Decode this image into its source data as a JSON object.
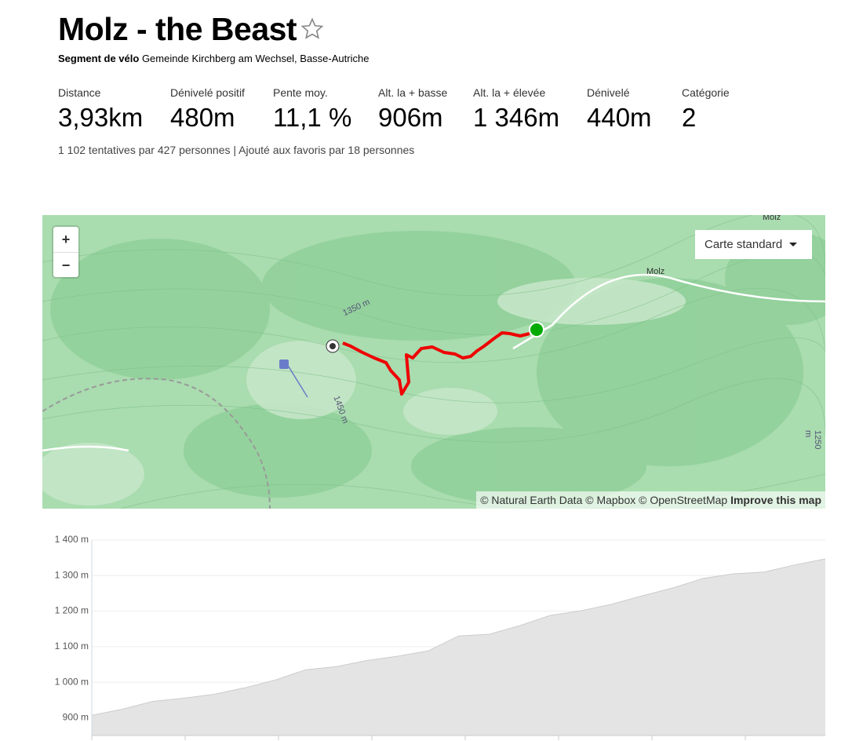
{
  "header": {
    "title": "Molz - the Beast",
    "kind": "Segment de vélo",
    "location": "Gemeinde Kirchberg am Wechsel, Basse-Autriche"
  },
  "stats": [
    {
      "label": "Distance",
      "value": "3,93km"
    },
    {
      "label": "Dénivelé positif",
      "value": "480m"
    },
    {
      "label": "Pente moy.",
      "value": "11,1 %"
    },
    {
      "label": "Alt. la + basse",
      "value": "906m"
    },
    {
      "label": "Alt. la + élevée",
      "value": "1 346m"
    },
    {
      "label": "Dénivelé",
      "value": "440m"
    },
    {
      "label": "Catégorie",
      "value": "2"
    }
  ],
  "summary": "1 102 tentatives par 427 personnes | Ajouté aux favoris par 18 personnes",
  "map": {
    "zoom_in": "+",
    "zoom_out": "−",
    "style": "Carte standard",
    "labels": [
      "Molz",
      "Molz",
      "1350 m",
      "1450 m",
      "1250 m"
    ],
    "attribution": "© Natural Earth Data © Mapbox © OpenStreetMap",
    "improve": "Improve this map"
  },
  "chart_data": {
    "type": "area",
    "values": [
      907,
      924,
      946,
      955,
      966,
      984,
      1006,
      1035,
      1044,
      1061,
      1073,
      1088,
      1130,
      1135,
      1159,
      1188,
      1201,
      1219,
      1243,
      1265,
      1292,
      1305,
      1310,
      1330,
      1347
    ],
    "ylim": [
      850,
      1400
    ],
    "yticks": [
      {
        "value": 900,
        "label": "900 m"
      },
      {
        "value": 1000,
        "label": "1 000 m"
      },
      {
        "value": 1100,
        "label": "1 100 m"
      },
      {
        "value": 1200,
        "label": "1 200 m"
      },
      {
        "value": 1300,
        "label": "1 300 m"
      },
      {
        "value": 1400,
        "label": "1 400 m"
      }
    ],
    "color": "#e4e4e4",
    "grid": true
  }
}
